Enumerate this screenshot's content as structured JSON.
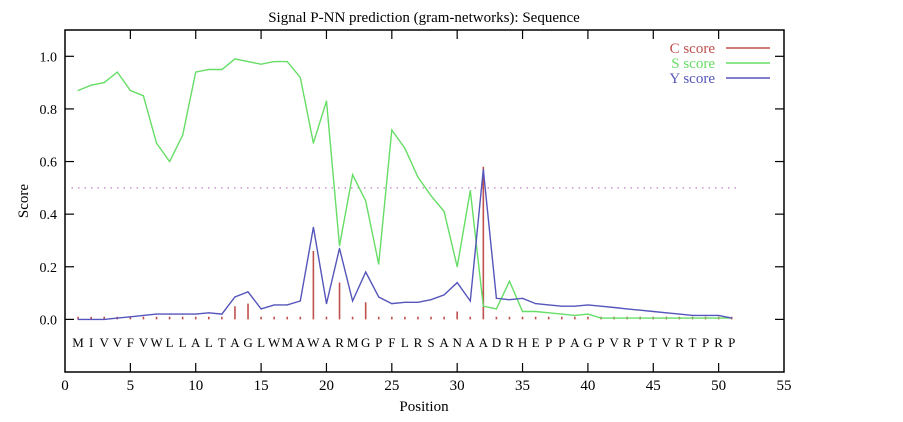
{
  "chart_data": {
    "type": "line",
    "title": "Signal P-NN prediction (gram-networks): Sequence",
    "xlabel": "Position",
    "ylabel": "Score",
    "xlim": [
      0,
      55
    ],
    "ylim": [
      -0.2,
      1.1
    ],
    "xticks": [
      0,
      5,
      10,
      15,
      20,
      25,
      30,
      35,
      40,
      45,
      50,
      55
    ],
    "yticks": [
      0.0,
      0.2,
      0.4,
      0.6,
      0.8,
      1.0
    ],
    "ytick_labels": [
      "0.0",
      "0.2",
      "0.4",
      "0.6",
      "0.8",
      "1.0"
    ],
    "threshold": 0.5,
    "legend_position": "top-right",
    "sequence": [
      "M",
      "I",
      "V",
      "V",
      "F",
      "V",
      "W",
      "L",
      "L",
      "A",
      "L",
      "T",
      "A",
      "G",
      "L",
      "W",
      "M",
      "A",
      "W",
      "A",
      "R",
      "M",
      "G",
      "P",
      "F",
      "L",
      "R",
      "S",
      "A",
      "N",
      "A",
      "A",
      "D",
      "R",
      "H",
      "E",
      "P",
      "P",
      "A",
      "G",
      "P",
      "V",
      "R",
      "P",
      "T",
      "V",
      "R",
      "T",
      "P",
      "R",
      "P"
    ],
    "x": [
      1,
      2,
      3,
      4,
      5,
      6,
      7,
      8,
      9,
      10,
      11,
      12,
      13,
      14,
      15,
      16,
      17,
      18,
      19,
      20,
      21,
      22,
      23,
      24,
      25,
      26,
      27,
      28,
      29,
      30,
      31,
      32,
      33,
      34,
      35,
      36,
      37,
      38,
      39,
      40,
      41,
      42,
      43,
      44,
      45,
      46,
      47,
      48,
      49,
      50,
      51
    ],
    "series": [
      {
        "name": "C score",
        "style": "impulses",
        "color": "#c0504d",
        "values": [
          0.01,
          0.01,
          0.01,
          0.01,
          0.01,
          0.01,
          0.01,
          0.01,
          0.01,
          0.01,
          0.01,
          0.01,
          0.05,
          0.06,
          0.01,
          0.01,
          0.01,
          0.01,
          0.26,
          0.01,
          0.14,
          0.01,
          0.065,
          0.01,
          0.01,
          0.01,
          0.01,
          0.01,
          0.01,
          0.03,
          0.01,
          0.58,
          0.01,
          0.01,
          0.01,
          0.01,
          0.01,
          0.01,
          0.01,
          0.01,
          0.01,
          0.01,
          0.01,
          0.01,
          0.01,
          0.01,
          0.01,
          0.01,
          0.01,
          0.01,
          0.01
        ]
      },
      {
        "name": "S score",
        "style": "line",
        "color": "#66dd66",
        "values": [
          0.87,
          0.89,
          0.9,
          0.94,
          0.87,
          0.85,
          0.67,
          0.6,
          0.7,
          0.94,
          0.95,
          0.95,
          0.99,
          0.98,
          0.97,
          0.98,
          0.98,
          0.92,
          0.67,
          0.83,
          0.28,
          0.55,
          0.45,
          0.21,
          0.72,
          0.65,
          0.54,
          0.47,
          0.41,
          0.2,
          0.49,
          0.05,
          0.04,
          0.145,
          0.03,
          0.03,
          0.025,
          0.02,
          0.015,
          0.02,
          0.005,
          0.005,
          0.005,
          0.005,
          0.005,
          0.005,
          0.005,
          0.005,
          0.005,
          0.005,
          0.005
        ]
      },
      {
        "name": "Y score",
        "style": "line",
        "color": "#5555bb",
        "values": [
          0.0,
          0.0,
          0.0,
          0.005,
          0.01,
          0.015,
          0.02,
          0.02,
          0.02,
          0.02,
          0.025,
          0.02,
          0.085,
          0.105,
          0.04,
          0.055,
          0.055,
          0.07,
          0.35,
          0.06,
          0.27,
          0.07,
          0.18,
          0.085,
          0.06,
          0.065,
          0.065,
          0.075,
          0.093,
          0.14,
          0.07,
          0.57,
          0.08,
          0.075,
          0.08,
          0.06,
          0.055,
          0.05,
          0.05,
          0.055,
          0.05,
          0.045,
          0.04,
          0.035,
          0.03,
          0.025,
          0.02,
          0.015,
          0.015,
          0.015,
          0.005
        ]
      }
    ]
  }
}
